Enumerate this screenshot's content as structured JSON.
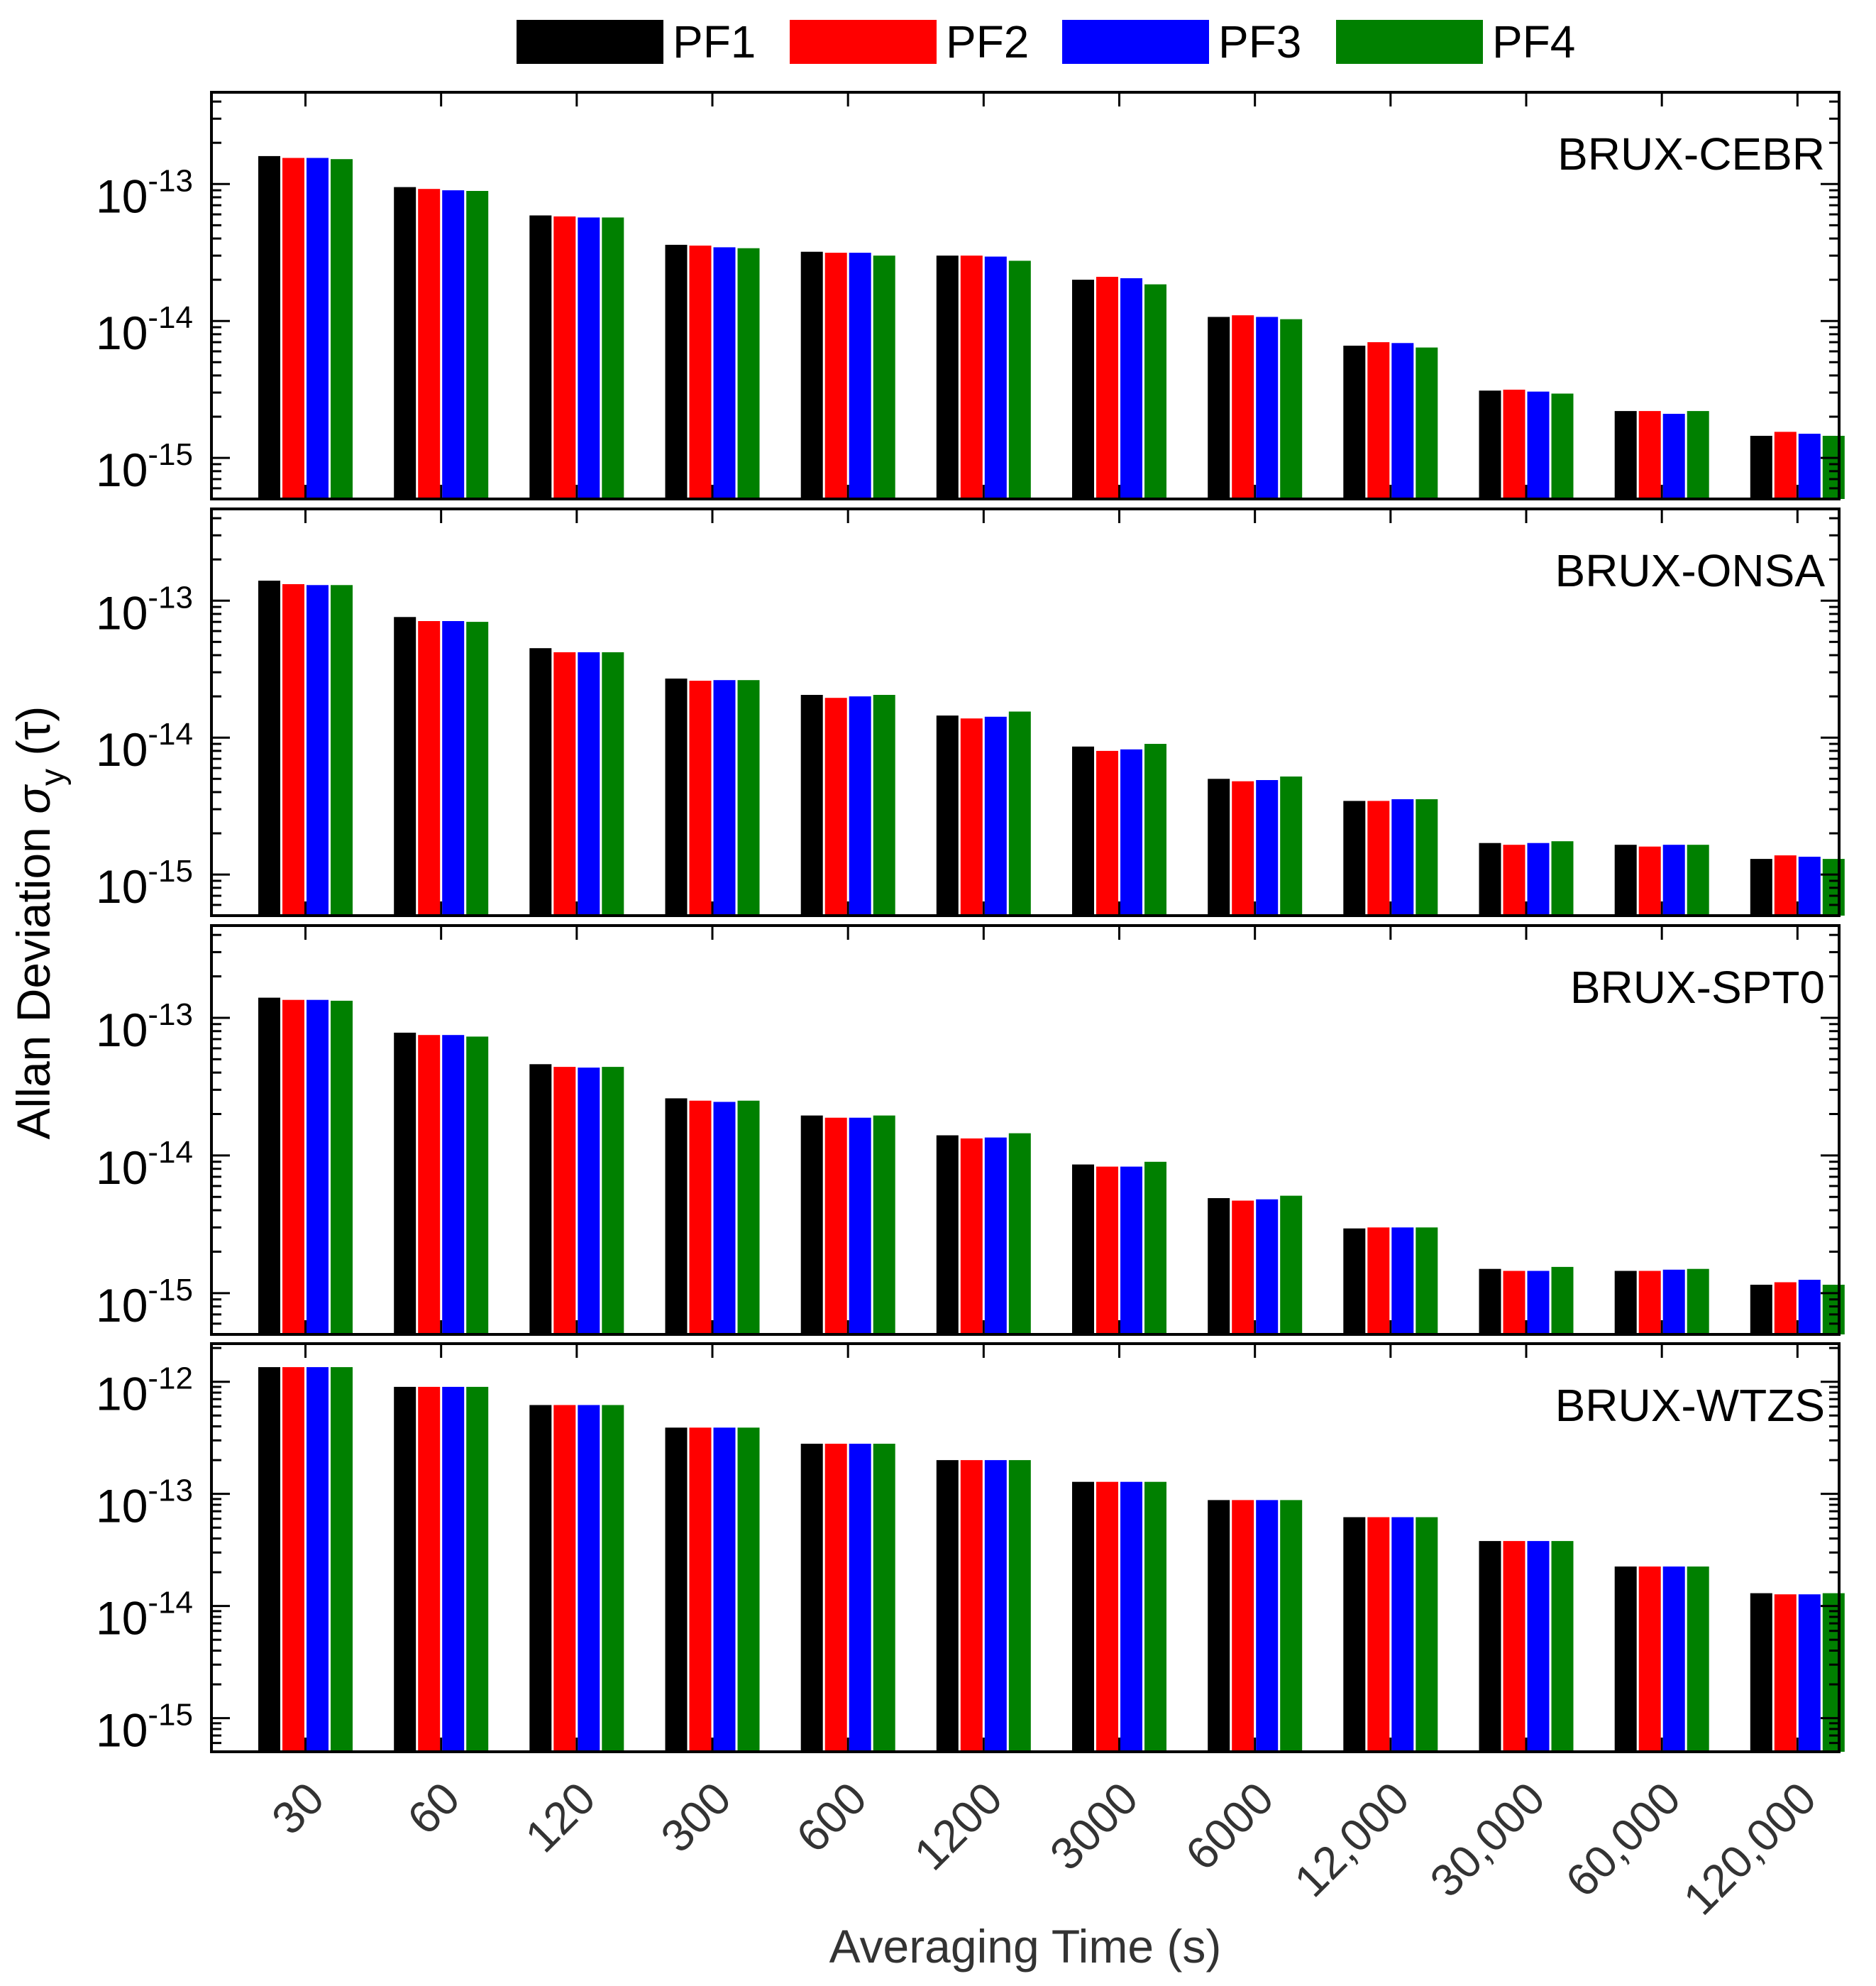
{
  "chart_data": {
    "type": "bar",
    "scale": "log",
    "xlabel": "Averaging Time (s)",
    "ylabel_prefix": "Allan Deviation ",
    "ylabel_sigma": "σ",
    "ylabel_sub": "y",
    "ylabel_suffix": " (τ)",
    "categories": [
      "30",
      "60",
      "120",
      "300",
      "600",
      "1200",
      "3000",
      "6000",
      "12,000",
      "30,000",
      "60,000",
      "120,000"
    ],
    "legend": [
      {
        "name": "PF1",
        "color": "#000000"
      },
      {
        "name": "PF2",
        "color": "#ff0000"
      },
      {
        "name": "PF3",
        "color": "#0000ff"
      },
      {
        "name": "PF4",
        "color": "#008000"
      }
    ],
    "panels": [
      {
        "title": "BRUX-CEBR",
        "ylim_exp": [
          -15.3,
          -12.33
        ],
        "tick_exps": [
          -13,
          -14,
          -15
        ],
        "tick_labels": [
          {
            "base": "10",
            "exp": "-13"
          },
          {
            "base": "10",
            "exp": "-14"
          },
          {
            "base": "10",
            "exp": "-15"
          }
        ],
        "series": [
          {
            "name": "PF1",
            "values": [
              1.6e-13,
              9.5e-14,
              5.9e-14,
              3.6e-14,
              3.2e-14,
              3e-14,
              2e-14,
              1.07e-14,
              6.6e-15,
              3.1e-15,
              2.2e-15,
              1.45e-15
            ]
          },
          {
            "name": "PF2",
            "values": [
              1.55e-13,
              9.2e-14,
              5.8e-14,
              3.55e-14,
              3.15e-14,
              3e-14,
              2.1e-14,
              1.1e-14,
              7e-15,
              3.15e-15,
              2.2e-15,
              1.55e-15
            ]
          },
          {
            "name": "PF3",
            "values": [
              1.55e-13,
              9e-14,
              5.7e-14,
              3.45e-14,
              3.15e-14,
              2.95e-14,
              2.05e-14,
              1.07e-14,
              6.9e-15,
              3.05e-15,
              2.1e-15,
              1.5e-15
            ]
          },
          {
            "name": "PF4",
            "values": [
              1.52e-13,
              8.9e-14,
              5.7e-14,
              3.4e-14,
              3e-14,
              2.75e-14,
              1.85e-14,
              1.03e-14,
              6.4e-15,
              2.95e-15,
              2.2e-15,
              1.45e-15
            ]
          }
        ]
      },
      {
        "title": "BRUX-ONSA",
        "ylim_exp": [
          -15.3,
          -12.33
        ],
        "tick_exps": [
          -13,
          -14,
          -15
        ],
        "tick_labels": [
          {
            "base": "10",
            "exp": "-13"
          },
          {
            "base": "10",
            "exp": "-14"
          },
          {
            "base": "10",
            "exp": "-15"
          }
        ],
        "series": [
          {
            "name": "PF1",
            "values": [
              1.4e-13,
              7.6e-14,
              4.5e-14,
              2.7e-14,
              2.05e-14,
              1.45e-14,
              8.6e-15,
              5e-15,
              3.45e-15,
              1.7e-15,
              1.65e-15,
              1.3e-15
            ]
          },
          {
            "name": "PF2",
            "values": [
              1.32e-13,
              7.1e-14,
              4.2e-14,
              2.6e-14,
              1.95e-14,
              1.38e-14,
              8e-15,
              4.8e-15,
              3.45e-15,
              1.65e-15,
              1.6e-15,
              1.38e-15
            ]
          },
          {
            "name": "PF3",
            "values": [
              1.3e-13,
              7.1e-14,
              4.2e-14,
              2.63e-14,
              2e-14,
              1.42e-14,
              8.2e-15,
              4.9e-15,
              3.55e-15,
              1.7e-15,
              1.65e-15,
              1.35e-15
            ]
          },
          {
            "name": "PF4",
            "values": [
              1.3e-13,
              7e-14,
              4.2e-14,
              2.63e-14,
              2.05e-14,
              1.55e-14,
              9e-15,
              5.2e-15,
              3.55e-15,
              1.75e-15,
              1.65e-15,
              1.3e-15
            ]
          }
        ]
      },
      {
        "title": "BRUX-SPT0",
        "ylim_exp": [
          -15.3,
          -12.33
        ],
        "tick_exps": [
          -13,
          -14,
          -15
        ],
        "tick_labels": [
          {
            "base": "10",
            "exp": "-13"
          },
          {
            "base": "10",
            "exp": "-14"
          },
          {
            "base": "10",
            "exp": "-15"
          }
        ],
        "series": [
          {
            "name": "PF1",
            "values": [
              1.4e-13,
              7.8e-14,
              4.6e-14,
              2.6e-14,
              1.95e-14,
              1.4e-14,
              8.6e-15,
              4.9e-15,
              2.95e-15,
              1.5e-15,
              1.45e-15,
              1.15e-15
            ]
          },
          {
            "name": "PF2",
            "values": [
              1.35e-13,
              7.5e-14,
              4.4e-14,
              2.5e-14,
              1.88e-14,
              1.33e-14,
              8.3e-15,
              4.7e-15,
              3e-15,
              1.45e-15,
              1.45e-15,
              1.2e-15
            ]
          },
          {
            "name": "PF3",
            "values": [
              1.35e-13,
              7.5e-14,
              4.35e-14,
              2.45e-14,
              1.88e-14,
              1.35e-14,
              8.3e-15,
              4.8e-15,
              3e-15,
              1.45e-15,
              1.48e-15,
              1.25e-15
            ]
          },
          {
            "name": "PF4",
            "values": [
              1.33e-13,
              7.3e-14,
              4.4e-14,
              2.5e-14,
              1.95e-14,
              1.45e-14,
              9e-15,
              5.1e-15,
              3e-15,
              1.55e-15,
              1.5e-15,
              1.15e-15
            ]
          }
        ]
      },
      {
        "title": "BRUX-WTZS",
        "ylim_exp": [
          -15.3,
          -11.66
        ],
        "tick_exps": [
          -12,
          -13,
          -14,
          -15
        ],
        "tick_labels": [
          {
            "base": "10",
            "exp": "-12"
          },
          {
            "base": "10",
            "exp": "-13"
          },
          {
            "base": "10",
            "exp": "-14"
          },
          {
            "base": "10",
            "exp": "-15"
          }
        ],
        "series": [
          {
            "name": "PF1",
            "values": [
              1.35e-12,
              9e-13,
              6.2e-13,
              3.9e-13,
              2.8e-13,
              2e-13,
              1.28e-13,
              8.8e-14,
              6.2e-14,
              3.8e-14,
              2.25e-14,
              1.3e-14
            ]
          },
          {
            "name": "PF2",
            "values": [
              1.35e-12,
              9e-13,
              6.2e-13,
              3.9e-13,
              2.8e-13,
              2e-13,
              1.28e-13,
              8.8e-14,
              6.2e-14,
              3.8e-14,
              2.25e-14,
              1.27e-14
            ]
          },
          {
            "name": "PF3",
            "values": [
              1.35e-12,
              9e-13,
              6.2e-13,
              3.9e-13,
              2.8e-13,
              2e-13,
              1.28e-13,
              8.8e-14,
              6.2e-14,
              3.8e-14,
              2.25e-14,
              1.27e-14
            ]
          },
          {
            "name": "PF4",
            "values": [
              1.35e-12,
              9e-13,
              6.2e-13,
              3.9e-13,
              2.8e-13,
              2e-13,
              1.28e-13,
              8.8e-14,
              6.2e-14,
              3.8e-14,
              2.25e-14,
              1.3e-14
            ]
          }
        ]
      }
    ]
  }
}
